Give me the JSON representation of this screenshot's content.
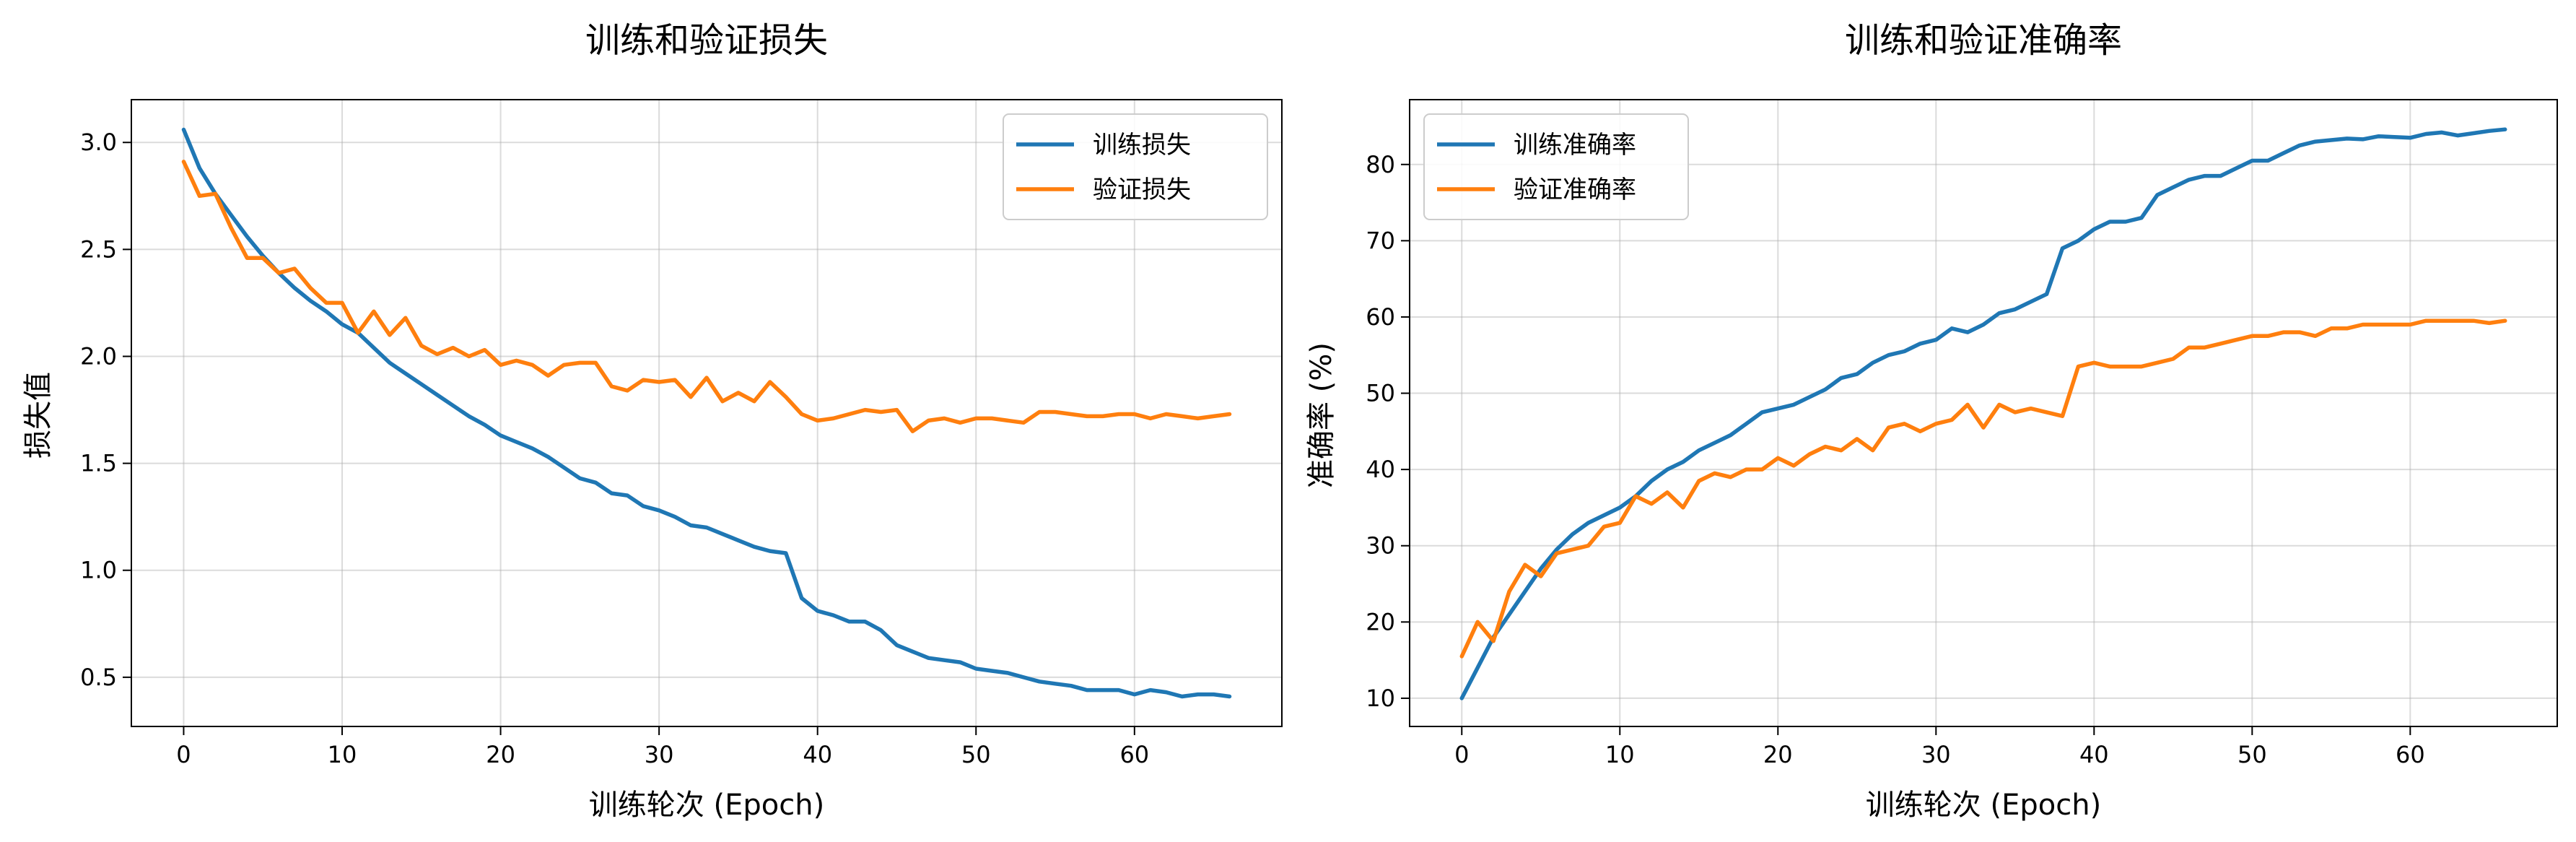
{
  "chart_data": [
    {
      "type": "line",
      "title": "训练和验证损失",
      "xlabel": "训练轮次 (Epoch)",
      "ylabel": "损失值",
      "xlim": [
        -3.3,
        69.3
      ],
      "ylim": [
        0.27,
        3.2
      ],
      "xticks": [
        0,
        10,
        20,
        30,
        40,
        50,
        60
      ],
      "yticks": [
        0.5,
        1.0,
        1.5,
        2.0,
        2.5,
        3.0
      ],
      "ytick_labels": [
        "0.5",
        "1.0",
        "1.5",
        "2.0",
        "2.5",
        "3.0"
      ],
      "grid": true,
      "legend": "top-right",
      "x": [
        0,
        1,
        2,
        3,
        4,
        5,
        6,
        7,
        8,
        9,
        10,
        11,
        12,
        13,
        14,
        15,
        16,
        17,
        18,
        19,
        20,
        21,
        22,
        23,
        24,
        25,
        26,
        27,
        28,
        29,
        30,
        31,
        32,
        33,
        34,
        35,
        36,
        37,
        38,
        39,
        40,
        41,
        42,
        43,
        44,
        45,
        46,
        47,
        48,
        49,
        50,
        51,
        52,
        53,
        54,
        55,
        56,
        57,
        58,
        59,
        60,
        61,
        62,
        63,
        64,
        65,
        66
      ],
      "series": [
        {
          "name": "训练损失",
          "color": "#1f77b4",
          "values": [
            3.06,
            2.88,
            2.76,
            2.66,
            2.56,
            2.47,
            2.39,
            2.32,
            2.26,
            2.21,
            2.15,
            2.11,
            2.04,
            1.97,
            1.92,
            1.87,
            1.82,
            1.77,
            1.72,
            1.68,
            1.63,
            1.6,
            1.57,
            1.53,
            1.48,
            1.43,
            1.41,
            1.36,
            1.35,
            1.3,
            1.28,
            1.25,
            1.21,
            1.2,
            1.17,
            1.14,
            1.11,
            1.09,
            1.08,
            0.87,
            0.81,
            0.79,
            0.76,
            0.76,
            0.72,
            0.65,
            0.62,
            0.59,
            0.58,
            0.57,
            0.54,
            0.53,
            0.52,
            0.5,
            0.48,
            0.47,
            0.46,
            0.44,
            0.44,
            0.44,
            0.42,
            0.44,
            0.43,
            0.41,
            0.42,
            0.42,
            0.41
          ]
        },
        {
          "name": "验证损失",
          "color": "#ff7f0e",
          "values": [
            2.91,
            2.75,
            2.76,
            2.6,
            2.46,
            2.46,
            2.39,
            2.41,
            2.32,
            2.25,
            2.25,
            2.11,
            2.21,
            2.1,
            2.18,
            2.05,
            2.01,
            2.04,
            2.0,
            2.03,
            1.96,
            1.98,
            1.96,
            1.91,
            1.96,
            1.97,
            1.97,
            1.86,
            1.84,
            1.89,
            1.88,
            1.89,
            1.81,
            1.9,
            1.79,
            1.83,
            1.79,
            1.88,
            1.81,
            1.73,
            1.7,
            1.71,
            1.73,
            1.75,
            1.74,
            1.75,
            1.65,
            1.7,
            1.71,
            1.69,
            1.71,
            1.71,
            1.7,
            1.69,
            1.74,
            1.74,
            1.73,
            1.72,
            1.72,
            1.73,
            1.73,
            1.71,
            1.73,
            1.72,
            1.71,
            1.72,
            1.73
          ]
        }
      ]
    },
    {
      "type": "line",
      "title": "训练和验证准确率",
      "xlabel": "训练轮次 (Epoch)",
      "ylabel": "准确率 (%)",
      "xlim": [
        -3.3,
        69.3
      ],
      "ylim": [
        6.3,
        88.5
      ],
      "xticks": [
        0,
        10,
        20,
        30,
        40,
        50,
        60
      ],
      "yticks": [
        10,
        20,
        30,
        40,
        50,
        60,
        70,
        80
      ],
      "ytick_labels": [
        "10",
        "20",
        "30",
        "40",
        "50",
        "60",
        "70",
        "80"
      ],
      "grid": true,
      "legend": "top-left",
      "x": [
        0,
        1,
        2,
        3,
        4,
        5,
        6,
        7,
        8,
        9,
        10,
        11,
        12,
        13,
        14,
        15,
        16,
        17,
        18,
        19,
        20,
        21,
        22,
        23,
        24,
        25,
        26,
        27,
        28,
        29,
        30,
        31,
        32,
        33,
        34,
        35,
        36,
        37,
        38,
        39,
        40,
        41,
        42,
        43,
        44,
        45,
        46,
        47,
        48,
        49,
        50,
        51,
        52,
        53,
        54,
        55,
        56,
        57,
        58,
        59,
        60,
        61,
        62,
        63,
        64,
        65,
        66
      ],
      "series": [
        {
          "name": "训练准确率",
          "color": "#1f77b4",
          "values": [
            10,
            14,
            18,
            21,
            24,
            27,
            29.5,
            31.5,
            33,
            34,
            35,
            36.5,
            38.5,
            40,
            41,
            42.5,
            43.5,
            44.5,
            46,
            47.5,
            48,
            48.5,
            49.5,
            50.5,
            52,
            52.5,
            54,
            55,
            55.5,
            56.5,
            57,
            58.5,
            58,
            59,
            60.5,
            61,
            62,
            63,
            69,
            70,
            71.5,
            72.5,
            72.5,
            73,
            76,
            77,
            78,
            78.5,
            78.5,
            79.5,
            80.5,
            80.5,
            81.5,
            82.5,
            83,
            83.2,
            83.4,
            83.3,
            83.7,
            83.6,
            83.5,
            84,
            84.2,
            83.8,
            84.1,
            84.4,
            84.6
          ]
        },
        {
          "name": "验证准确率",
          "color": "#ff7f0e",
          "values": [
            15.5,
            20,
            17.5,
            24,
            27.5,
            26,
            29,
            29.5,
            30,
            32.5,
            33,
            36.5,
            35.5,
            37,
            35,
            38.5,
            39.5,
            39,
            40,
            40,
            41.5,
            40.5,
            42,
            43,
            42.5,
            44,
            42.5,
            45.5,
            46,
            45,
            46,
            46.5,
            48.5,
            45.5,
            48.5,
            47.5,
            48,
            47.5,
            47,
            53.5,
            54,
            53.5,
            53.5,
            53.5,
            54,
            54.5,
            56,
            56,
            56.5,
            57,
            57.5,
            57.5,
            58,
            58,
            57.5,
            58.5,
            58.5,
            59,
            59,
            59,
            59,
            59.5,
            59.5,
            59.5,
            59.5,
            59.2,
            59.5
          ]
        }
      ]
    }
  ]
}
